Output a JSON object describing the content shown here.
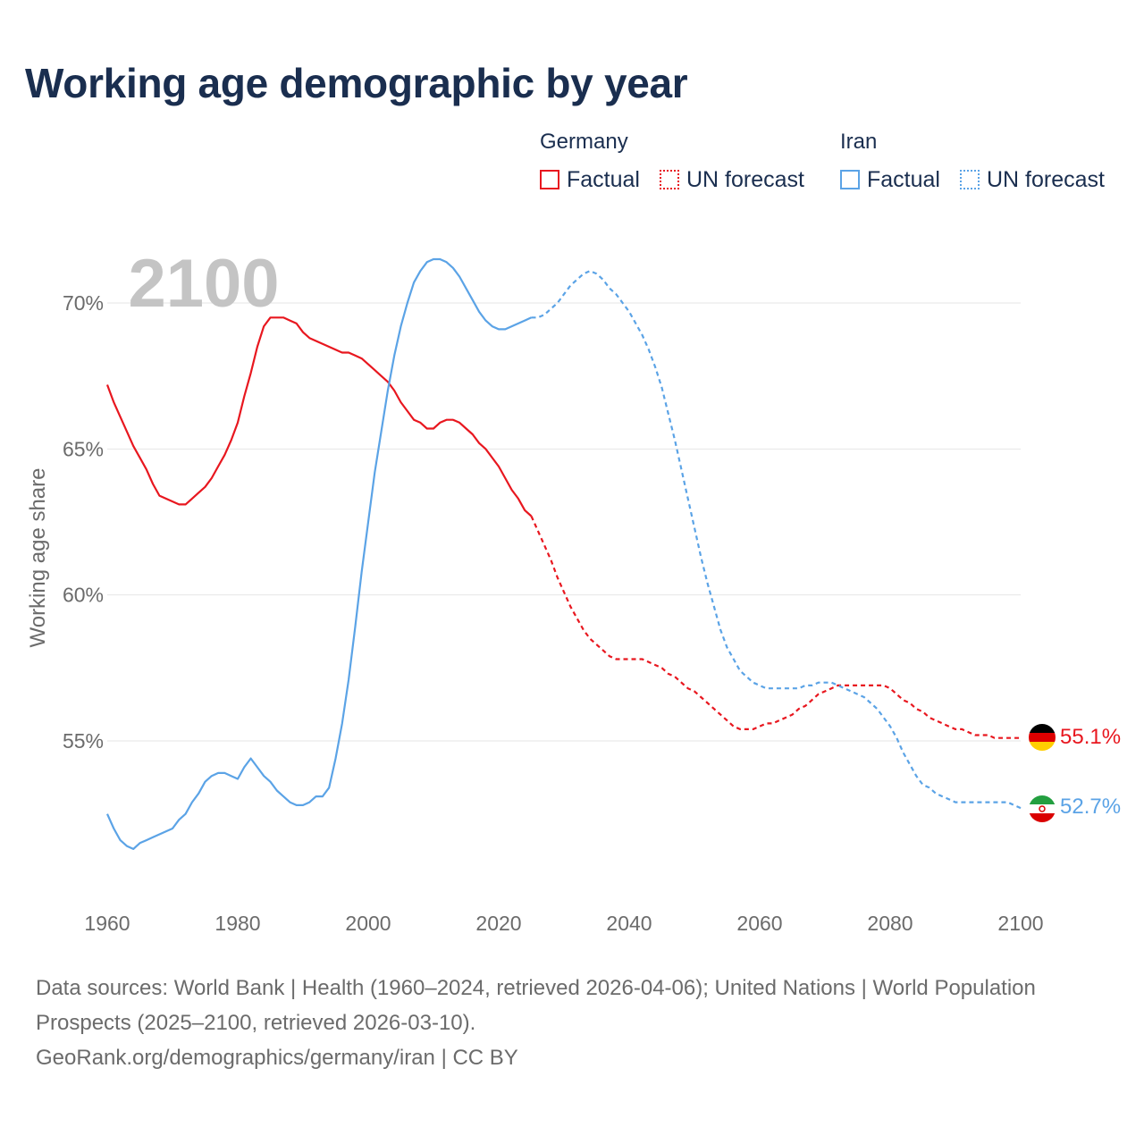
{
  "header": {
    "title": "Working age demographic by year"
  },
  "legend": {
    "groups": [
      {
        "name": "Germany",
        "factual_label": "Factual",
        "forecast_label": "UN forecast",
        "color": "#e8171f"
      },
      {
        "name": "Iran",
        "factual_label": "Factual",
        "forecast_label": "UN forecast",
        "color": "#5ba3e6"
      }
    ]
  },
  "chart_data": {
    "type": "line",
    "title": "Working age demographic by year",
    "xlabel": "",
    "ylabel": "Working age share",
    "year_watermark": "2100",
    "xlim": [
      1960,
      2100
    ],
    "ylim": [
      50,
      72
    ],
    "xticks": [
      1960,
      1980,
      2000,
      2020,
      2040,
      2060,
      2080,
      2100
    ],
    "xtick_labels": [
      "1960",
      "1980",
      "2000",
      "2020",
      "2040",
      "2060",
      "2080",
      "2100"
    ],
    "yticks": [
      55,
      60,
      65,
      70
    ],
    "ytick_labels": [
      "55%",
      "60%",
      "65%",
      "70%"
    ],
    "grid": true,
    "factual_end_year": 2025,
    "series": [
      {
        "name": "Germany",
        "color": "#e8171f",
        "end_label": "55.1%",
        "flag": "germany-flag",
        "points": [
          [
            1960,
            67.2
          ],
          [
            1961,
            66.6
          ],
          [
            1962,
            66.1
          ],
          [
            1963,
            65.6
          ],
          [
            1964,
            65.1
          ],
          [
            1965,
            64.7
          ],
          [
            1966,
            64.3
          ],
          [
            1967,
            63.8
          ],
          [
            1968,
            63.4
          ],
          [
            1969,
            63.3
          ],
          [
            1970,
            63.2
          ],
          [
            1971,
            63.1
          ],
          [
            1972,
            63.1
          ],
          [
            1973,
            63.3
          ],
          [
            1974,
            63.5
          ],
          [
            1975,
            63.7
          ],
          [
            1976,
            64.0
          ],
          [
            1977,
            64.4
          ],
          [
            1978,
            64.8
          ],
          [
            1979,
            65.3
          ],
          [
            1980,
            65.9
          ],
          [
            1981,
            66.8
          ],
          [
            1982,
            67.6
          ],
          [
            1983,
            68.5
          ],
          [
            1984,
            69.2
          ],
          [
            1985,
            69.5
          ],
          [
            1986,
            69.5
          ],
          [
            1987,
            69.5
          ],
          [
            1988,
            69.4
          ],
          [
            1989,
            69.3
          ],
          [
            1990,
            69.0
          ],
          [
            1991,
            68.8
          ],
          [
            1992,
            68.7
          ],
          [
            1993,
            68.6
          ],
          [
            1994,
            68.5
          ],
          [
            1995,
            68.4
          ],
          [
            1996,
            68.3
          ],
          [
            1997,
            68.3
          ],
          [
            1998,
            68.2
          ],
          [
            1999,
            68.1
          ],
          [
            2000,
            67.9
          ],
          [
            2001,
            67.7
          ],
          [
            2002,
            67.5
          ],
          [
            2003,
            67.3
          ],
          [
            2004,
            67.0
          ],
          [
            2005,
            66.6
          ],
          [
            2006,
            66.3
          ],
          [
            2007,
            66.0
          ],
          [
            2008,
            65.9
          ],
          [
            2009,
            65.7
          ],
          [
            2010,
            65.7
          ],
          [
            2011,
            65.9
          ],
          [
            2012,
            66.0
          ],
          [
            2013,
            66.0
          ],
          [
            2014,
            65.9
          ],
          [
            2015,
            65.7
          ],
          [
            2016,
            65.5
          ],
          [
            2017,
            65.2
          ],
          [
            2018,
            65.0
          ],
          [
            2019,
            64.7
          ],
          [
            2020,
            64.4
          ],
          [
            2021,
            64.0
          ],
          [
            2022,
            63.6
          ],
          [
            2023,
            63.3
          ],
          [
            2024,
            62.9
          ],
          [
            2025,
            62.7
          ],
          [
            2026,
            62.2
          ],
          [
            2027,
            61.7
          ],
          [
            2028,
            61.2
          ],
          [
            2029,
            60.6
          ],
          [
            2030,
            60.1
          ],
          [
            2031,
            59.6
          ],
          [
            2032,
            59.2
          ],
          [
            2033,
            58.8
          ],
          [
            2034,
            58.5
          ],
          [
            2035,
            58.3
          ],
          [
            2036,
            58.1
          ],
          [
            2037,
            57.9
          ],
          [
            2038,
            57.8
          ],
          [
            2039,
            57.8
          ],
          [
            2040,
            57.8
          ],
          [
            2041,
            57.8
          ],
          [
            2042,
            57.8
          ],
          [
            2043,
            57.7
          ],
          [
            2044,
            57.6
          ],
          [
            2045,
            57.5
          ],
          [
            2046,
            57.3
          ],
          [
            2047,
            57.2
          ],
          [
            2048,
            57.0
          ],
          [
            2049,
            56.8
          ],
          [
            2050,
            56.7
          ],
          [
            2051,
            56.5
          ],
          [
            2052,
            56.3
          ],
          [
            2053,
            56.1
          ],
          [
            2054,
            55.9
          ],
          [
            2055,
            55.7
          ],
          [
            2056,
            55.5
          ],
          [
            2057,
            55.4
          ],
          [
            2058,
            55.4
          ],
          [
            2059,
            55.4
          ],
          [
            2060,
            55.5
          ],
          [
            2061,
            55.6
          ],
          [
            2062,
            55.6
          ],
          [
            2063,
            55.7
          ],
          [
            2064,
            55.8
          ],
          [
            2065,
            55.9
          ],
          [
            2066,
            56.1
          ],
          [
            2067,
            56.2
          ],
          [
            2068,
            56.4
          ],
          [
            2069,
            56.6
          ],
          [
            2070,
            56.7
          ],
          [
            2071,
            56.8
          ],
          [
            2072,
            56.9
          ],
          [
            2073,
            56.9
          ],
          [
            2074,
            56.9
          ],
          [
            2075,
            56.9
          ],
          [
            2076,
            56.9
          ],
          [
            2077,
            56.9
          ],
          [
            2078,
            56.9
          ],
          [
            2079,
            56.9
          ],
          [
            2080,
            56.8
          ],
          [
            2081,
            56.6
          ],
          [
            2082,
            56.4
          ],
          [
            2083,
            56.3
          ],
          [
            2084,
            56.1
          ],
          [
            2085,
            56.0
          ],
          [
            2086,
            55.8
          ],
          [
            2087,
            55.7
          ],
          [
            2088,
            55.6
          ],
          [
            2089,
            55.5
          ],
          [
            2090,
            55.4
          ],
          [
            2091,
            55.4
          ],
          [
            2092,
            55.3
          ],
          [
            2093,
            55.2
          ],
          [
            2094,
            55.2
          ],
          [
            2095,
            55.2
          ],
          [
            2096,
            55.1
          ],
          [
            2097,
            55.1
          ],
          [
            2098,
            55.1
          ],
          [
            2099,
            55.1
          ],
          [
            2100,
            55.1
          ]
        ]
      },
      {
        "name": "Iran",
        "color": "#5ba3e6",
        "end_label": "52.7%",
        "flag": "iran-flag",
        "points": [
          [
            1960,
            52.5
          ],
          [
            1961,
            52.0
          ],
          [
            1962,
            51.6
          ],
          [
            1963,
            51.4
          ],
          [
            1964,
            51.3
          ],
          [
            1965,
            51.5
          ],
          [
            1966,
            51.6
          ],
          [
            1967,
            51.7
          ],
          [
            1968,
            51.8
          ],
          [
            1969,
            51.9
          ],
          [
            1970,
            52.0
          ],
          [
            1971,
            52.3
          ],
          [
            1972,
            52.5
          ],
          [
            1973,
            52.9
          ],
          [
            1974,
            53.2
          ],
          [
            1975,
            53.6
          ],
          [
            1976,
            53.8
          ],
          [
            1977,
            53.9
          ],
          [
            1978,
            53.9
          ],
          [
            1979,
            53.8
          ],
          [
            1980,
            53.7
          ],
          [
            1981,
            54.1
          ],
          [
            1982,
            54.4
          ],
          [
            1983,
            54.1
          ],
          [
            1984,
            53.8
          ],
          [
            1985,
            53.6
          ],
          [
            1986,
            53.3
          ],
          [
            1987,
            53.1
          ],
          [
            1988,
            52.9
          ],
          [
            1989,
            52.8
          ],
          [
            1990,
            52.8
          ],
          [
            1991,
            52.9
          ],
          [
            1992,
            53.1
          ],
          [
            1993,
            53.1
          ],
          [
            1994,
            53.4
          ],
          [
            1995,
            54.4
          ],
          [
            1996,
            55.6
          ],
          [
            1997,
            57.1
          ],
          [
            1998,
            58.9
          ],
          [
            1999,
            60.8
          ],
          [
            2000,
            62.5
          ],
          [
            2001,
            64.2
          ],
          [
            2002,
            65.6
          ],
          [
            2003,
            67.0
          ],
          [
            2004,
            68.2
          ],
          [
            2005,
            69.2
          ],
          [
            2006,
            70.0
          ],
          [
            2007,
            70.7
          ],
          [
            2008,
            71.1
          ],
          [
            2009,
            71.4
          ],
          [
            2010,
            71.5
          ],
          [
            2011,
            71.5
          ],
          [
            2012,
            71.4
          ],
          [
            2013,
            71.2
          ],
          [
            2014,
            70.9
          ],
          [
            2015,
            70.5
          ],
          [
            2016,
            70.1
          ],
          [
            2017,
            69.7
          ],
          [
            2018,
            69.4
          ],
          [
            2019,
            69.2
          ],
          [
            2020,
            69.1
          ],
          [
            2021,
            69.1
          ],
          [
            2022,
            69.2
          ],
          [
            2023,
            69.3
          ],
          [
            2024,
            69.4
          ],
          [
            2025,
            69.5
          ],
          [
            2026,
            69.5
          ],
          [
            2027,
            69.6
          ],
          [
            2028,
            69.8
          ],
          [
            2029,
            70.0
          ],
          [
            2030,
            70.3
          ],
          [
            2031,
            70.6
          ],
          [
            2032,
            70.8
          ],
          [
            2033,
            71.0
          ],
          [
            2034,
            71.1
          ],
          [
            2035,
            71.0
          ],
          [
            2036,
            70.8
          ],
          [
            2037,
            70.5
          ],
          [
            2038,
            70.3
          ],
          [
            2039,
            70.0
          ],
          [
            2040,
            69.7
          ],
          [
            2041,
            69.3
          ],
          [
            2042,
            68.9
          ],
          [
            2043,
            68.4
          ],
          [
            2044,
            67.8
          ],
          [
            2045,
            67.1
          ],
          [
            2046,
            66.2
          ],
          [
            2047,
            65.3
          ],
          [
            2048,
            64.3
          ],
          [
            2049,
            63.3
          ],
          [
            2050,
            62.3
          ],
          [
            2051,
            61.3
          ],
          [
            2052,
            60.4
          ],
          [
            2053,
            59.6
          ],
          [
            2054,
            58.8
          ],
          [
            2055,
            58.2
          ],
          [
            2056,
            57.8
          ],
          [
            2057,
            57.4
          ],
          [
            2058,
            57.2
          ],
          [
            2059,
            57.0
          ],
          [
            2060,
            56.9
          ],
          [
            2061,
            56.8
          ],
          [
            2062,
            56.8
          ],
          [
            2063,
            56.8
          ],
          [
            2064,
            56.8
          ],
          [
            2065,
            56.8
          ],
          [
            2066,
            56.8
          ],
          [
            2067,
            56.9
          ],
          [
            2068,
            56.9
          ],
          [
            2069,
            57.0
          ],
          [
            2070,
            57.0
          ],
          [
            2071,
            57.0
          ],
          [
            2072,
            56.9
          ],
          [
            2073,
            56.8
          ],
          [
            2074,
            56.7
          ],
          [
            2075,
            56.6
          ],
          [
            2076,
            56.5
          ],
          [
            2077,
            56.3
          ],
          [
            2078,
            56.1
          ],
          [
            2079,
            55.8
          ],
          [
            2080,
            55.5
          ],
          [
            2081,
            55.1
          ],
          [
            2082,
            54.6
          ],
          [
            2083,
            54.2
          ],
          [
            2084,
            53.8
          ],
          [
            2085,
            53.5
          ],
          [
            2086,
            53.4
          ],
          [
            2087,
            53.2
          ],
          [
            2088,
            53.1
          ],
          [
            2089,
            53.0
          ],
          [
            2090,
            52.9
          ],
          [
            2091,
            52.9
          ],
          [
            2092,
            52.9
          ],
          [
            2093,
            52.9
          ],
          [
            2094,
            52.9
          ],
          [
            2095,
            52.9
          ],
          [
            2096,
            52.9
          ],
          [
            2097,
            52.9
          ],
          [
            2098,
            52.9
          ],
          [
            2099,
            52.8
          ],
          [
            2100,
            52.7
          ]
        ]
      }
    ]
  },
  "footer": {
    "sources": "Data sources: World Bank | Health (1960–2024, retrieved 2026-04-06); United Nations | World Population Prospects (2025–2100, retrieved 2026-03-10).",
    "credit": "GeoRank.org/demographics/germany/iran | CC BY"
  }
}
